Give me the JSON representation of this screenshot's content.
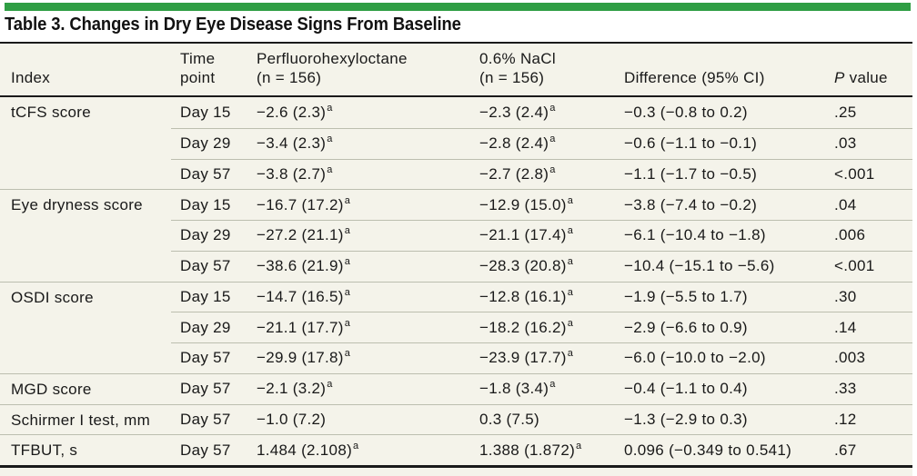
{
  "title": "Table 3. Changes in Dry Eye Disease Signs From Baseline",
  "colors": {
    "accent_bar": "#2f9e44"
  },
  "header": {
    "index": "Index",
    "time_l1": "Time",
    "time_l2": "point",
    "drug_l1": "Perfluorohexyloctane",
    "drug_l2": "(n = 156)",
    "nacl_l1": "0.6% NaCl",
    "nacl_l2": "(n = 156)",
    "diff": "Difference (95% CI)",
    "p_italic": "P",
    "p_rest": "value"
  },
  "groups": [
    {
      "index": "tCFS score",
      "rows": [
        {
          "time": "Day 15",
          "drug": {
            "v": "−2.6 (2.3)",
            "sup": "a"
          },
          "nacl": {
            "v": "−2.3 (2.4)",
            "sup": "a"
          },
          "diff": "−0.3 (−0.8 to 0.2)",
          "p": ".25"
        },
        {
          "time": "Day 29",
          "drug": {
            "v": "−3.4 (2.3)",
            "sup": "a"
          },
          "nacl": {
            "v": "−2.8 (2.4)",
            "sup": "a"
          },
          "diff": "−0.6 (−1.1 to −0.1)",
          "p": ".03"
        },
        {
          "time": "Day 57",
          "drug": {
            "v": "−3.8 (2.7)",
            "sup": "a"
          },
          "nacl": {
            "v": "−2.7 (2.8)",
            "sup": "a"
          },
          "diff": "−1.1 (−1.7 to −0.5)",
          "p": "<.001"
        }
      ]
    },
    {
      "index": "Eye dryness score",
      "rows": [
        {
          "time": "Day 15",
          "drug": {
            "v": "−16.7 (17.2)",
            "sup": "a"
          },
          "nacl": {
            "v": "−12.9 (15.0)",
            "sup": "a"
          },
          "diff": "−3.8 (−7.4 to −0.2)",
          "p": ".04"
        },
        {
          "time": "Day 29",
          "drug": {
            "v": "−27.2 (21.1)",
            "sup": "a"
          },
          "nacl": {
            "v": "−21.1 (17.4)",
            "sup": "a"
          },
          "diff": "−6.1 (−10.4 to −1.8)",
          "p": ".006"
        },
        {
          "time": "Day 57",
          "drug": {
            "v": "−38.6 (21.9)",
            "sup": "a"
          },
          "nacl": {
            "v": "−28.3 (20.8)",
            "sup": "a"
          },
          "diff": "−10.4 (−15.1 to −5.6)",
          "p": "<.001"
        }
      ]
    },
    {
      "index": "OSDI score",
      "rows": [
        {
          "time": "Day 15",
          "drug": {
            "v": "−14.7 (16.5)",
            "sup": "a"
          },
          "nacl": {
            "v": "−12.8 (16.1)",
            "sup": "a"
          },
          "diff": "−1.9 (−5.5 to 1.7)",
          "p": ".30"
        },
        {
          "time": "Day 29",
          "drug": {
            "v": "−21.1 (17.7)",
            "sup": "a"
          },
          "nacl": {
            "v": "−18.2 (16.2)",
            "sup": "a"
          },
          "diff": "−2.9 (−6.6 to 0.9)",
          "p": ".14"
        },
        {
          "time": "Day 57",
          "drug": {
            "v": "−29.9 (17.8)",
            "sup": "a"
          },
          "nacl": {
            "v": "−23.9 (17.7)",
            "sup": "a"
          },
          "diff": "−6.0 (−10.0 to −2.0)",
          "p": ".003"
        }
      ]
    },
    {
      "index": "MGD score",
      "rows": [
        {
          "time": "Day 57",
          "drug": {
            "v": "−2.1 (3.2)",
            "sup": "a"
          },
          "nacl": {
            "v": "−1.8 (3.4)",
            "sup": "a"
          },
          "diff": "−0.4 (−1.1 to 0.4)",
          "p": ".33"
        }
      ]
    },
    {
      "index": "Schirmer I test, mm",
      "rows": [
        {
          "time": "Day 57",
          "drug": {
            "v": "−1.0 (7.2)",
            "sup": ""
          },
          "nacl": {
            "v": "0.3 (7.5)",
            "sup": ""
          },
          "diff": "−1.3 (−2.9 to 0.3)",
          "p": ".12"
        }
      ]
    },
    {
      "index": "TFBUT, s",
      "rows": [
        {
          "time": "Day 57",
          "drug": {
            "v": "1.484 (2.108)",
            "sup": "a"
          },
          "nacl": {
            "v": "1.388 (1.872)",
            "sup": "a"
          },
          "diff": "0.096 (−0.349 to 0.541)",
          "p": ".67"
        }
      ]
    }
  ]
}
